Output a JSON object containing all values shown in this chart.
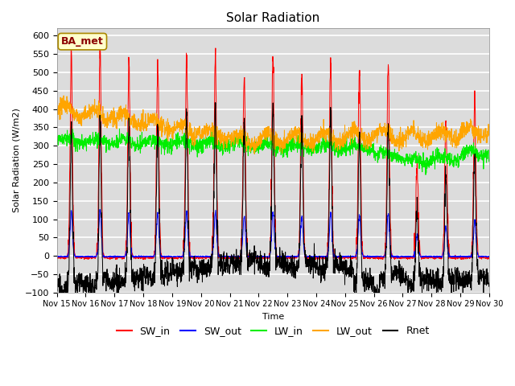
{
  "title": "Solar Radiation",
  "ylabel": "Solar Radiation (W/m2)",
  "xlabel": "Time",
  "annotation": "BA_met",
  "ylim": [
    -100,
    620
  ],
  "yticks": [
    -100,
    -50,
    0,
    50,
    100,
    150,
    200,
    250,
    300,
    350,
    400,
    450,
    500,
    550,
    600
  ],
  "x_tick_labels": [
    "Nov 15",
    "Nov 16",
    "Nov 17",
    "Nov 18",
    "Nov 19",
    "Nov 20",
    "Nov 21",
    "Nov 22",
    "Nov 23",
    "Nov 24",
    "Nov 25",
    "Nov 26",
    "Nov 27",
    "Nov 28",
    "Nov 29",
    "Nov 30"
  ],
  "legend_entries": [
    "SW_in",
    "SW_out",
    "LW_in",
    "LW_out",
    "Rnet"
  ],
  "line_colors": {
    "SW_in": "#ff0000",
    "SW_out": "#0000ff",
    "LW_in": "#00ee00",
    "LW_out": "#ffa500",
    "Rnet": "#000000"
  },
  "n_days": 15,
  "points_per_day": 144,
  "background_color": "#dcdcdc",
  "grid_color": "#ffffff",
  "annotation_bg": "#ffffcc",
  "annotation_border": "#aa8800",
  "fig_width": 6.4,
  "fig_height": 4.8,
  "fig_dpi": 100
}
